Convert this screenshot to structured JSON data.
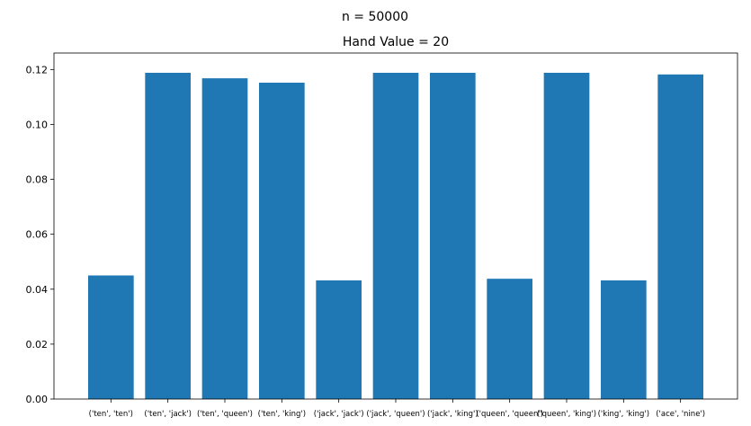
{
  "chart_data": {
    "type": "bar",
    "suptitle": "n = 50000",
    "title": "Hand Value = 20",
    "xlabel": "",
    "ylabel": "",
    "categories": [
      "('ten', 'ten')",
      "('ten', 'jack')",
      "('ten', 'queen')",
      "('ten', 'king')",
      "('jack', 'jack')",
      "('jack', 'queen')",
      "('jack', 'king')",
      "('queen', 'queen')",
      "('queen', 'king')",
      "('king', 'king')",
      "('ace', 'nine')"
    ],
    "values": [
      0.045,
      0.1188,
      0.1168,
      0.1152,
      0.0432,
      0.1188,
      0.1188,
      0.0438,
      0.1188,
      0.0432,
      0.1182
    ],
    "ylim": [
      0,
      0.126
    ],
    "yticks": [
      0.0,
      0.02,
      0.04,
      0.06,
      0.08,
      0.1,
      0.12
    ],
    "ytick_labels": [
      "0.00",
      "0.02",
      "0.04",
      "0.06",
      "0.08",
      "0.10",
      "0.12"
    ],
    "bar_color": "#1f77b4",
    "grid": false,
    "legend": "none"
  }
}
